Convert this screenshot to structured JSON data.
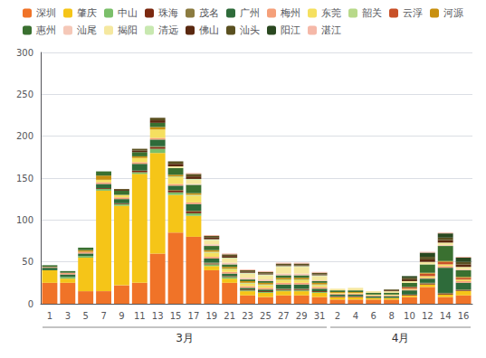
{
  "chart_data": {
    "type": "bar",
    "stacked": true,
    "grid": true,
    "legend": "top",
    "categories": [
      "1",
      "3",
      "5",
      "7",
      "9",
      "11",
      "13",
      "15",
      "17",
      "19",
      "21",
      "23",
      "25",
      "27",
      "29",
      "31",
      "2",
      "4",
      "6",
      "8",
      "10",
      "12",
      "14",
      "16"
    ],
    "series": [
      {
        "name": "深圳",
        "color": "#F07328",
        "values": [
          25,
          25,
          15,
          15,
          22,
          25,
          60,
          85,
          80,
          40,
          25,
          10,
          8,
          10,
          10,
          8,
          5,
          5,
          5,
          5,
          8,
          20,
          8,
          10
        ]
      },
      {
        "name": "肇庆",
        "color": "#F5C518",
        "values": [
          15,
          5,
          40,
          120,
          95,
          130,
          120,
          45,
          25,
          5,
          5,
          5,
          5,
          5,
          5,
          5,
          3,
          3,
          2,
          2,
          2,
          3,
          3,
          5
        ]
      },
      {
        "name": "中山",
        "color": "#7BBF6A",
        "values": [
          0,
          2,
          2,
          2,
          2,
          2,
          5,
          3,
          3,
          2,
          2,
          1,
          1,
          1,
          1,
          1,
          0,
          0,
          0,
          0,
          0,
          0,
          0,
          0
        ]
      },
      {
        "name": "珠海",
        "color": "#7B2810",
        "values": [
          0,
          0,
          0,
          1,
          1,
          2,
          2,
          2,
          2,
          1,
          1,
          1,
          1,
          1,
          1,
          1,
          1,
          1,
          0,
          0,
          1,
          1,
          1,
          1
        ]
      },
      {
        "name": "茂名",
        "color": "#8B7B40",
        "values": [
          0,
          0,
          0,
          0,
          0,
          0,
          1,
          1,
          1,
          1,
          0,
          0,
          0,
          1,
          1,
          0,
          0,
          0,
          0,
          0,
          0,
          1,
          1,
          1
        ]
      },
      {
        "name": "广州",
        "color": "#2E6B3A",
        "values": [
          3,
          3,
          3,
          5,
          5,
          8,
          8,
          5,
          8,
          5,
          3,
          2,
          2,
          5,
          5,
          3,
          2,
          2,
          2,
          2,
          5,
          5,
          30,
          8
        ]
      },
      {
        "name": "梅州",
        "color": "#F5A07A",
        "values": [
          1,
          2,
          2,
          2,
          2,
          2,
          2,
          2,
          2,
          2,
          2,
          2,
          2,
          2,
          2,
          2,
          1,
          1,
          1,
          1,
          1,
          1,
          2,
          2
        ]
      },
      {
        "name": "东莞",
        "color": "#F5E060",
        "values": [
          0,
          0,
          0,
          3,
          3,
          5,
          10,
          8,
          8,
          5,
          3,
          3,
          3,
          3,
          3,
          2,
          1,
          1,
          1,
          1,
          1,
          2,
          2,
          2
        ]
      },
      {
        "name": "韶关",
        "color": "#B8D98A",
        "values": [
          0,
          0,
          0,
          0,
          0,
          0,
          0,
          1,
          1,
          1,
          1,
          1,
          1,
          1,
          1,
          1,
          0,
          0,
          0,
          0,
          0,
          0,
          0,
          0
        ]
      },
      {
        "name": "云浮",
        "color": "#C85028",
        "values": [
          0,
          0,
          0,
          0,
          0,
          0,
          0,
          0,
          0,
          0,
          0,
          0,
          0,
          0,
          0,
          0,
          0,
          0,
          0,
          0,
          2,
          3,
          3,
          2
        ]
      },
      {
        "name": "河源",
        "color": "#C89010",
        "values": [
          0,
          0,
          2,
          5,
          0,
          2,
          3,
          2,
          2,
          2,
          2,
          2,
          2,
          2,
          2,
          2,
          1,
          1,
          0,
          0,
          0,
          1,
          1,
          1
        ]
      },
      {
        "name": "惠州",
        "color": "#3A7030",
        "values": [
          2,
          2,
          3,
          5,
          5,
          5,
          5,
          8,
          10,
          5,
          3,
          2,
          2,
          3,
          3,
          2,
          2,
          2,
          2,
          2,
          5,
          10,
          18,
          8
        ]
      },
      {
        "name": "汕尾",
        "color": "#F5C8B8",
        "values": [
          0,
          0,
          0,
          0,
          0,
          0,
          0,
          0,
          1,
          2,
          2,
          2,
          2,
          2,
          2,
          1,
          0,
          0,
          0,
          0,
          0,
          0,
          1,
          1
        ]
      },
      {
        "name": "揭阳",
        "color": "#F5E8A0",
        "values": [
          0,
          0,
          0,
          0,
          0,
          0,
          0,
          2,
          5,
          5,
          5,
          5,
          5,
          8,
          8,
          5,
          2,
          3,
          2,
          2,
          2,
          3,
          3,
          3
        ]
      },
      {
        "name": "清远",
        "color": "#C8E8B0",
        "values": [
          0,
          0,
          0,
          0,
          0,
          0,
          0,
          0,
          1,
          1,
          1,
          1,
          1,
          1,
          1,
          1,
          0,
          0,
          0,
          0,
          0,
          0,
          0,
          0
        ]
      },
      {
        "name": "佛山",
        "color": "#5A2810",
        "values": [
          0,
          0,
          0,
          0,
          1,
          2,
          3,
          3,
          3,
          2,
          2,
          1,
          1,
          1,
          1,
          1,
          0,
          0,
          0,
          1,
          2,
          3,
          3,
          3
        ]
      },
      {
        "name": "汕头",
        "color": "#5A5020",
        "values": [
          0,
          0,
          0,
          0,
          1,
          2,
          3,
          3,
          3,
          2,
          2,
          2,
          2,
          2,
          2,
          2,
          0,
          0,
          0,
          1,
          2,
          3,
          3,
          3
        ]
      },
      {
        "name": "阳江",
        "color": "#2A4820",
        "values": [
          0,
          0,
          0,
          0,
          0,
          0,
          0,
          0,
          0,
          0,
          0,
          0,
          0,
          0,
          0,
          0,
          0,
          0,
          0,
          0,
          2,
          5,
          5,
          5
        ]
      },
      {
        "name": "湛江",
        "color": "#F5B8A8",
        "values": [
          0,
          0,
          0,
          0,
          0,
          0,
          0,
          0,
          1,
          1,
          1,
          1,
          1,
          1,
          1,
          1,
          0,
          0,
          0,
          0,
          0,
          1,
          1,
          1
        ]
      }
    ],
    "ylim": [
      0,
      300
    ],
    "yticks": [
      0,
      50,
      100,
      150,
      200,
      250,
      300
    ],
    "annotations": [
      {
        "text": "3月",
        "from": "1",
        "to": "31"
      },
      {
        "text": "4月",
        "from": "2",
        "to": "16"
      }
    ]
  }
}
